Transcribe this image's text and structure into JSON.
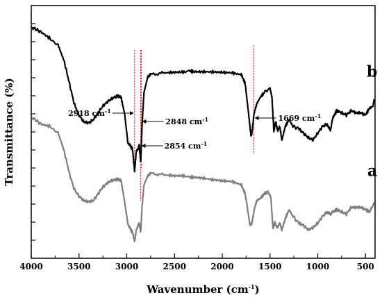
{
  "chart_data": {
    "type": "line",
    "title": "",
    "xlabel": "Wavenumber (cm-1)",
    "xlabel_main": "Wavenumber (cm",
    "xlabel_sup": "-1",
    "xlabel_end": ")",
    "ylabel": "Transmittance (%)",
    "xlim": [
      4000,
      400
    ],
    "x_reversed": true,
    "y_ticks_labeled": false,
    "x_ticks": [
      4000,
      3500,
      3000,
      2500,
      2000,
      1500,
      1000,
      500
    ],
    "x_tick_labels": [
      "4000",
      "3500",
      "3000",
      "2500",
      "2000",
      "1500",
      "1000",
      "500"
    ],
    "series": [
      {
        "name": "b",
        "color": "#000000",
        "points": [
          [
            3990,
            0.06
          ],
          [
            3900,
            0.08
          ],
          [
            3800,
            0.11
          ],
          [
            3720,
            0.14
          ],
          [
            3650,
            0.22
          ],
          [
            3600,
            0.31
          ],
          [
            3550,
            0.4
          ],
          [
            3500,
            0.45
          ],
          [
            3450,
            0.48
          ],
          [
            3400,
            0.485
          ],
          [
            3350,
            0.47
          ],
          [
            3300,
            0.44
          ],
          [
            3250,
            0.41
          ],
          [
            3200,
            0.39
          ],
          [
            3150,
            0.375
          ],
          [
            3100,
            0.365
          ],
          [
            3060,
            0.37
          ],
          [
            3020,
            0.45
          ],
          [
            2990,
            0.57
          ],
          [
            2960,
            0.59
          ],
          [
            2940,
            0.6
          ],
          [
            2918,
            0.7
          ],
          [
            2900,
            0.61
          ],
          [
            2880,
            0.6
          ],
          [
            2870,
            0.58
          ],
          [
            2854,
            0.66
          ],
          [
            2840,
            0.5
          ],
          [
            2820,
            0.35
          ],
          [
            2780,
            0.28
          ],
          [
            2750,
            0.27
          ],
          [
            2600,
            0.262
          ],
          [
            2500,
            0.26
          ],
          [
            2400,
            0.258
          ],
          [
            2340,
            0.253
          ],
          [
            2300,
            0.257
          ],
          [
            2200,
            0.257
          ],
          [
            2100,
            0.258
          ],
          [
            2000,
            0.26
          ],
          [
            1900,
            0.262
          ],
          [
            1800,
            0.27
          ],
          [
            1760,
            0.31
          ],
          [
            1720,
            0.46
          ],
          [
            1700,
            0.54
          ],
          [
            1690,
            0.53
          ],
          [
            1669,
            0.45
          ],
          [
            1640,
            0.4
          ],
          [
            1600,
            0.37
          ],
          [
            1560,
            0.35
          ],
          [
            1500,
            0.33
          ],
          [
            1480,
            0.37
          ],
          [
            1460,
            0.52
          ],
          [
            1440,
            0.48
          ],
          [
            1420,
            0.52
          ],
          [
            1400,
            0.5
          ],
          [
            1375,
            0.56
          ],
          [
            1340,
            0.5
          ],
          [
            1300,
            0.47
          ],
          [
            1260,
            0.5
          ],
          [
            1200,
            0.51
          ],
          [
            1150,
            0.53
          ],
          [
            1100,
            0.55
          ],
          [
            1050,
            0.56
          ],
          [
            1000,
            0.53
          ],
          [
            950,
            0.5
          ],
          [
            900,
            0.49
          ],
          [
            870,
            0.52
          ],
          [
            840,
            0.46
          ],
          [
            800,
            0.43
          ],
          [
            750,
            0.44
          ],
          [
            700,
            0.45
          ],
          [
            650,
            0.43
          ],
          [
            600,
            0.44
          ],
          [
            550,
            0.44
          ],
          [
            500,
            0.45
          ],
          [
            460,
            0.42
          ],
          [
            420,
            0.41
          ],
          [
            410,
            0.38
          ]
        ]
      },
      {
        "name": "a",
        "color": "#7f7f7f",
        "points": [
          [
            3990,
            0.46
          ],
          [
            3900,
            0.49
          ],
          [
            3800,
            0.5
          ],
          [
            3720,
            0.53
          ],
          [
            3650,
            0.62
          ],
          [
            3600,
            0.71
          ],
          [
            3550,
            0.78
          ],
          [
            3500,
            0.81
          ],
          [
            3450,
            0.83
          ],
          [
            3400,
            0.835
          ],
          [
            3350,
            0.83
          ],
          [
            3300,
            0.8
          ],
          [
            3250,
            0.77
          ],
          [
            3200,
            0.75
          ],
          [
            3150,
            0.74
          ],
          [
            3100,
            0.735
          ],
          [
            3060,
            0.74
          ],
          [
            3020,
            0.84
          ],
          [
            2990,
            0.93
          ],
          [
            2960,
            0.96
          ],
          [
            2940,
            0.97
          ],
          [
            2918,
            1.01
          ],
          [
            2900,
            0.96
          ],
          [
            2880,
            0.94
          ],
          [
            2870,
            0.93
          ],
          [
            2854,
            0.97
          ],
          [
            2840,
            0.86
          ],
          [
            2820,
            0.76
          ],
          [
            2780,
            0.72
          ],
          [
            2750,
            0.71
          ],
          [
            2600,
            0.716
          ],
          [
            2500,
            0.72
          ],
          [
            2400,
            0.72
          ],
          [
            2340,
            0.726
          ],
          [
            2300,
            0.726
          ],
          [
            2200,
            0.73
          ],
          [
            2100,
            0.737
          ],
          [
            2000,
            0.742
          ],
          [
            1900,
            0.745
          ],
          [
            1800,
            0.76
          ],
          [
            1760,
            0.8
          ],
          [
            1730,
            0.88
          ],
          [
            1710,
            0.94
          ],
          [
            1690,
            0.93
          ],
          [
            1669,
            0.88
          ],
          [
            1640,
            0.83
          ],
          [
            1600,
            0.82
          ],
          [
            1560,
            0.8
          ],
          [
            1520,
            0.79
          ],
          [
            1490,
            0.82
          ],
          [
            1470,
            0.95
          ],
          [
            1450,
            0.93
          ],
          [
            1420,
            0.95
          ],
          [
            1400,
            0.93
          ],
          [
            1375,
            0.96
          ],
          [
            1340,
            0.91
          ],
          [
            1300,
            0.87
          ],
          [
            1260,
            0.9
          ],
          [
            1200,
            0.93
          ],
          [
            1150,
            0.94
          ],
          [
            1100,
            0.96
          ],
          [
            1050,
            0.95
          ],
          [
            1000,
            0.93
          ],
          [
            950,
            0.9
          ],
          [
            900,
            0.88
          ],
          [
            870,
            0.89
          ],
          [
            840,
            0.88
          ],
          [
            800,
            0.87
          ],
          [
            750,
            0.88
          ],
          [
            700,
            0.89
          ],
          [
            650,
            0.86
          ],
          [
            600,
            0.86
          ],
          [
            550,
            0.86
          ],
          [
            500,
            0.87
          ],
          [
            460,
            0.88
          ],
          [
            430,
            0.86
          ],
          [
            410,
            0.84
          ]
        ]
      }
    ],
    "curve_labels": [
      {
        "text": "b",
        "anchor_x": 420,
        "anchor_y": 0.28
      },
      {
        "text": "a",
        "anchor_x": 420,
        "anchor_y": 0.72
      }
    ],
    "annotations": [
      {
        "wavenumber": 2918,
        "label": "2918 cm",
        "sup": "-1",
        "side": "left"
      },
      {
        "wavenumber": 2854,
        "label": "2854 cm",
        "sup": "-1",
        "side": "right-below"
      },
      {
        "wavenumber": 2848,
        "label": "2848 cm",
        "sup": "-1",
        "side": "right"
      },
      {
        "wavenumber": 1669,
        "label": "1669 cm",
        "sup": "-1",
        "side": "right"
      }
    ],
    "marker_color": "#e02020"
  }
}
